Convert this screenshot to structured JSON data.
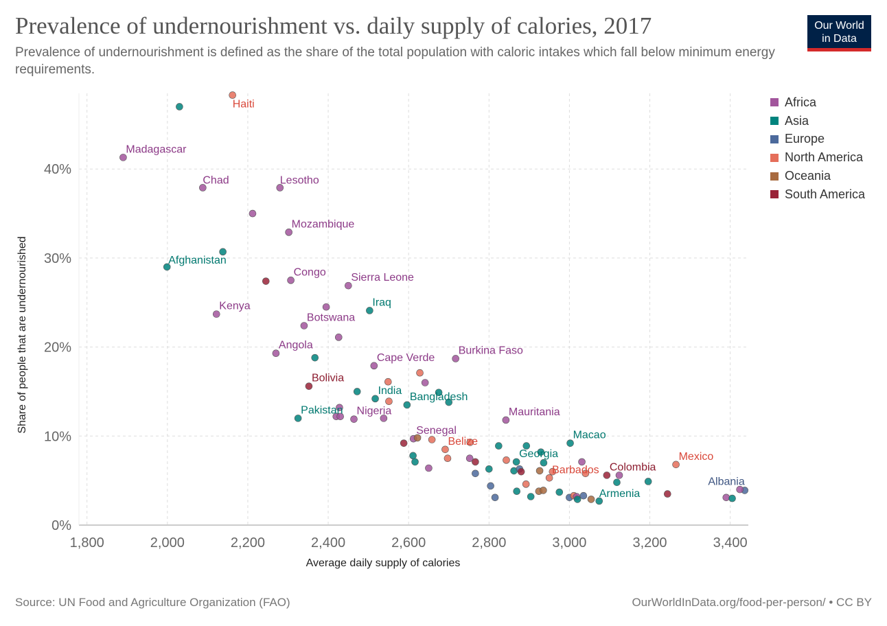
{
  "header": {
    "title": "Prevalence of undernourishment vs. daily supply of calories, 2017",
    "subtitle": "Prevalence of undernourishment is defined as the share of the total population with caloric intakes which fall below minimum energy requirements."
  },
  "logo": {
    "line1": "Our World",
    "line2": "in Data"
  },
  "footer": {
    "source": "Source: UN Food and Agriculture Organization (FAO)",
    "credit": "OurWorldInData.org/food-per-person/ • CC BY"
  },
  "legend": {
    "items": [
      {
        "label": "Africa",
        "color": "#a2559c"
      },
      {
        "label": "Asia",
        "color": "#00847e"
      },
      {
        "label": "Europe",
        "color": "#4c6a9c"
      },
      {
        "label": "North America",
        "color": "#e56e5a"
      },
      {
        "label": "Oceania",
        "color": "#a86a3f"
      },
      {
        "label": "South America",
        "color": "#9a2338"
      }
    ]
  },
  "chart_data": {
    "type": "scatter",
    "xlabel": "Average daily supply of calories",
    "ylabel": "Share of people that are undernourished",
    "xlim": [
      1780,
      3445
    ],
    "ylim": [
      0,
      48.5
    ],
    "x_ticks": [
      1800,
      2000,
      2200,
      2400,
      2600,
      2800,
      3000,
      3200,
      3400
    ],
    "x_tick_labels": [
      "1,800",
      "2,000",
      "2,200",
      "2,400",
      "2,600",
      "2,800",
      "3,000",
      "3,200",
      "3,400"
    ],
    "y_ticks": [
      0,
      10,
      20,
      30,
      40
    ],
    "y_tick_labels": [
      "0%",
      "10%",
      "20%",
      "30%",
      "40%"
    ],
    "grid": true,
    "legend_position": "right",
    "series_colors": {
      "Africa": "#a2559c",
      "Asia": "#00847e",
      "Europe": "#4c6a9c",
      "North America": "#e56e5a",
      "Oceania": "#a86a3f",
      "South America": "#9a2338"
    },
    "points": [
      {
        "label": "Haiti",
        "region": "North America",
        "x": 2162,
        "y": 48.3
      },
      {
        "label": "",
        "region": "Asia",
        "x": 2030,
        "y": 47.0
      },
      {
        "label": "Madagascar",
        "region": "Africa",
        "x": 1890,
        "y": 41.3
      },
      {
        "label": "Chad",
        "region": "Africa",
        "x": 2088,
        "y": 37.9
      },
      {
        "label": "Lesotho",
        "region": "Africa",
        "x": 2280,
        "y": 37.9
      },
      {
        "label": "",
        "region": "Africa",
        "x": 2212,
        "y": 35.0
      },
      {
        "label": "Mozambique",
        "region": "Africa",
        "x": 2302,
        "y": 32.9
      },
      {
        "label": "",
        "region": "Asia",
        "x": 2138,
        "y": 30.7
      },
      {
        "label": "Afghanistan",
        "region": "Asia",
        "x": 1999,
        "y": 29.0
      },
      {
        "label": "",
        "region": "South America",
        "x": 2245,
        "y": 27.4
      },
      {
        "label": "Congo",
        "region": "Africa",
        "x": 2307,
        "y": 27.5
      },
      {
        "label": "Sierra Leone",
        "region": "Africa",
        "x": 2450,
        "y": 26.9
      },
      {
        "label": "",
        "region": "Africa",
        "x": 2395,
        "y": 24.5
      },
      {
        "label": "Iraq",
        "region": "Asia",
        "x": 2503,
        "y": 24.1
      },
      {
        "label": "Kenya",
        "region": "Africa",
        "x": 2122,
        "y": 23.7
      },
      {
        "label": "Botswana",
        "region": "Africa",
        "x": 2340,
        "y": 22.4
      },
      {
        "label": "",
        "region": "Africa",
        "x": 2426,
        "y": 21.1
      },
      {
        "label": "Angola",
        "region": "Africa",
        "x": 2270,
        "y": 19.3
      },
      {
        "label": "",
        "region": "Asia",
        "x": 2367,
        "y": 18.8
      },
      {
        "label": "Burkina Faso",
        "region": "Africa",
        "x": 2717,
        "y": 18.7
      },
      {
        "label": "Cape Verde",
        "region": "Africa",
        "x": 2514,
        "y": 17.9
      },
      {
        "label": "",
        "region": "North America",
        "x": 2628,
        "y": 17.1
      },
      {
        "label": "",
        "region": "North America",
        "x": 2549,
        "y": 16.1
      },
      {
        "label": "",
        "region": "Africa",
        "x": 2641,
        "y": 16.0
      },
      {
        "label": "Bolivia",
        "region": "South America",
        "x": 2352,
        "y": 15.6
      },
      {
        "label": "",
        "region": "Asia",
        "x": 2472,
        "y": 15.0
      },
      {
        "label": "India",
        "region": "Asia",
        "x": 2517,
        "y": 14.2
      },
      {
        "label": "",
        "region": "North America",
        "x": 2551,
        "y": 13.9
      },
      {
        "label": "",
        "region": "Asia",
        "x": 2675,
        "y": 14.9
      },
      {
        "label": "Bangladesh",
        "region": "Asia",
        "x": 2596,
        "y": 13.5
      },
      {
        "label": "",
        "region": "Asia",
        "x": 2700,
        "y": 13.8
      },
      {
        "label": "",
        "region": "Africa",
        "x": 2428,
        "y": 13.2
      },
      {
        "label": "Pakistan",
        "region": "Asia",
        "x": 2325,
        "y": 12.0
      },
      {
        "label": "",
        "region": "Africa",
        "x": 2420,
        "y": 12.2
      },
      {
        "label": "",
        "region": "Africa",
        "x": 2430,
        "y": 12.2
      },
      {
        "label": "Nigeria",
        "region": "Africa",
        "x": 2464,
        "y": 11.9
      },
      {
        "label": "",
        "region": "Africa",
        "x": 2538,
        "y": 12.0
      },
      {
        "label": "Mauritania",
        "region": "Africa",
        "x": 2842,
        "y": 11.8
      },
      {
        "label": "Senegal",
        "region": "Africa",
        "x": 2612,
        "y": 9.7
      },
      {
        "label": "",
        "region": "Oceania",
        "x": 2622,
        "y": 9.8
      },
      {
        "label": "",
        "region": "North America",
        "x": 2658,
        "y": 9.6
      },
      {
        "label": "",
        "region": "South America",
        "x": 2588,
        "y": 9.2
      },
      {
        "label": "Macao",
        "region": "Asia",
        "x": 3002,
        "y": 9.2
      },
      {
        "label": "",
        "region": "North America",
        "x": 2753,
        "y": 9.3
      },
      {
        "label": "",
        "region": "Asia",
        "x": 2893,
        "y": 8.9
      },
      {
        "label": "",
        "region": "Asia",
        "x": 2824,
        "y": 8.9
      },
      {
        "label": "Belize",
        "region": "North America",
        "x": 2691,
        "y": 8.5
      },
      {
        "label": "",
        "region": "Asia",
        "x": 2929,
        "y": 8.2
      },
      {
        "label": "",
        "region": "Asia",
        "x": 2611,
        "y": 7.8
      },
      {
        "label": "",
        "region": "North America",
        "x": 2697,
        "y": 7.5
      },
      {
        "label": "",
        "region": "Africa",
        "x": 2752,
        "y": 7.5
      },
      {
        "label": "",
        "region": "South America",
        "x": 2766,
        "y": 7.1
      },
      {
        "label": "",
        "region": "Asia",
        "x": 2616,
        "y": 7.1
      },
      {
        "label": "",
        "region": "North America",
        "x": 2843,
        "y": 7.3
      },
      {
        "label": "Georgia",
        "region": "Asia",
        "x": 2868,
        "y": 7.1
      },
      {
        "label": "",
        "region": "Asia",
        "x": 2936,
        "y": 7.0
      },
      {
        "label": "",
        "region": "Africa",
        "x": 3031,
        "y": 7.1
      },
      {
        "label": "",
        "region": "Africa",
        "x": 2650,
        "y": 6.4
      },
      {
        "label": "",
        "region": "Asia",
        "x": 2800,
        "y": 6.3
      },
      {
        "label": "",
        "region": "Europe",
        "x": 2766,
        "y": 5.8
      },
      {
        "label": "",
        "region": "Asia",
        "x": 2862,
        "y": 6.1
      },
      {
        "label": "",
        "region": "Europe",
        "x": 2876,
        "y": 6.3
      },
      {
        "label": "",
        "region": "South America",
        "x": 2880,
        "y": 6.0
      },
      {
        "label": "",
        "region": "Oceania",
        "x": 2926,
        "y": 6.1
      },
      {
        "label": "",
        "region": "North America",
        "x": 2958,
        "y": 6.0
      },
      {
        "label": "Barbados",
        "region": "North America",
        "x": 2950,
        "y": 5.3
      },
      {
        "label": "",
        "region": "North America",
        "x": 3040,
        "y": 5.8
      },
      {
        "label": "Colombia",
        "region": "South America",
        "x": 3093,
        "y": 5.6
      },
      {
        "label": "",
        "region": "Africa",
        "x": 3124,
        "y": 5.6
      },
      {
        "label": "Mexico",
        "region": "North America",
        "x": 3265,
        "y": 6.8
      },
      {
        "label": "",
        "region": "Asia",
        "x": 3196,
        "y": 4.9
      },
      {
        "label": "",
        "region": "Asia",
        "x": 3118,
        "y": 4.8
      },
      {
        "label": "",
        "region": "North America",
        "x": 2892,
        "y": 4.6
      },
      {
        "label": "",
        "region": "Europe",
        "x": 2804,
        "y": 4.4
      },
      {
        "label": "",
        "region": "Oceania",
        "x": 2924,
        "y": 3.8
      },
      {
        "label": "",
        "region": "Oceania",
        "x": 2935,
        "y": 3.9
      },
      {
        "label": "",
        "region": "Asia",
        "x": 2869,
        "y": 3.8
      },
      {
        "label": "",
        "region": "Asia",
        "x": 2975,
        "y": 3.7
      },
      {
        "label": "",
        "region": "Asia",
        "x": 2904,
        "y": 3.2
      },
      {
        "label": "",
        "region": "Europe",
        "x": 2815,
        "y": 3.1
      },
      {
        "label": "",
        "region": "Europe",
        "x": 3000,
        "y": 3.1
      },
      {
        "label": "",
        "region": "North America",
        "x": 3011,
        "y": 3.3
      },
      {
        "label": "",
        "region": "Africa",
        "x": 3018,
        "y": 3.2
      },
      {
        "label": "",
        "region": "Asia",
        "x": 3020,
        "y": 2.9
      },
      {
        "label": "",
        "region": "Europe",
        "x": 3035,
        "y": 3.3
      },
      {
        "label": "",
        "region": "Oceania",
        "x": 3054,
        "y": 2.9
      },
      {
        "label": "Armenia",
        "region": "Asia",
        "x": 3074,
        "y": 2.7
      },
      {
        "label": "",
        "region": "South America",
        "x": 3244,
        "y": 3.5
      },
      {
        "label": "Albania",
        "region": "Europe",
        "x": 3436,
        "y": 3.9
      },
      {
        "label": "",
        "region": "Africa",
        "x": 3424,
        "y": 4.0
      },
      {
        "label": "",
        "region": "Africa",
        "x": 3390,
        "y": 3.1
      },
      {
        "label": "",
        "region": "Asia",
        "x": 3405,
        "y": 3.0
      }
    ]
  }
}
